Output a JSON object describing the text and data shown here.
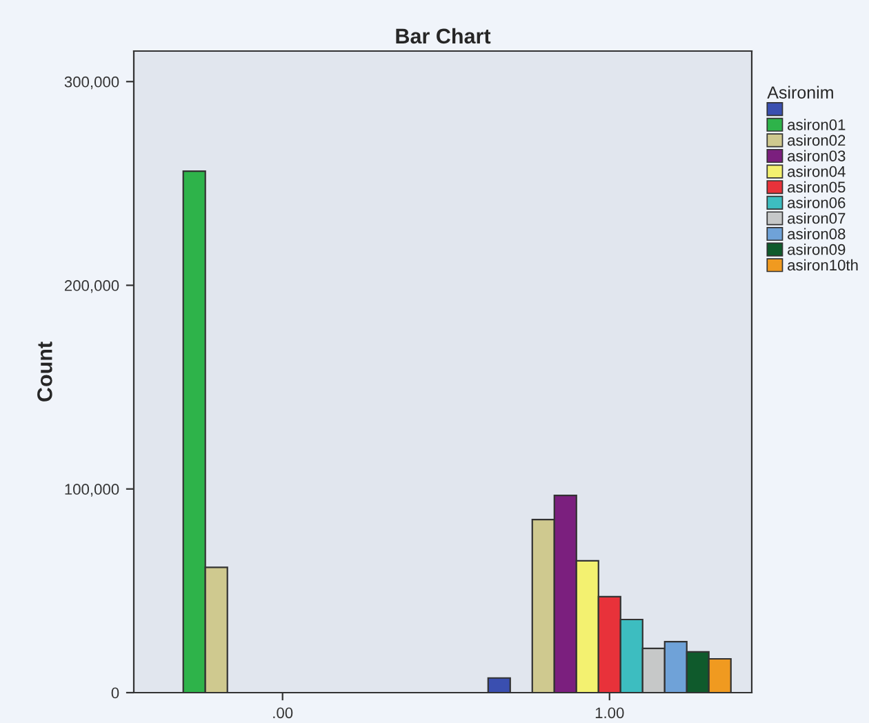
{
  "chart_data": {
    "type": "bar",
    "title": "Bar Chart",
    "ylabel": "Count",
    "legend_title": "Asironim",
    "legend": "right",
    "grid": false,
    "categories": [
      ".00",
      "1.00"
    ],
    "ylim": [
      0,
      315000
    ],
    "yticks": [
      {
        "value": 0,
        "label": "0"
      },
      {
        "value": 100000,
        "label": "100,000"
      },
      {
        "value": 200000,
        "label": "200,000"
      },
      {
        "value": 300000,
        "label": "300,000"
      }
    ],
    "series": [
      {
        "color": "#3a4fb0",
        "values": [
          null,
          7200
        ]
      },
      {
        "name": "asiron01",
        "color": "#2eb34a",
        "values": [
          256000,
          null
        ]
      },
      {
        "name": "asiron02",
        "color": "#cfc98f",
        "values": [
          61500,
          85000
        ]
      },
      {
        "name": "asiron03",
        "color": "#7b1f7e",
        "values": [
          null,
          96800
        ]
      },
      {
        "name": "asiron04",
        "color": "#f3f170",
        "values": [
          null,
          64700
        ]
      },
      {
        "name": "asiron05",
        "color": "#e8323a",
        "values": [
          null,
          47100
        ]
      },
      {
        "name": "asiron06",
        "color": "#3dbdc0",
        "values": [
          null,
          35900
        ]
      },
      {
        "name": "asiron07",
        "color": "#c6c8c8",
        "values": [
          null,
          21700
        ]
      },
      {
        "name": "asiron08",
        "color": "#6fa2d8",
        "values": [
          null,
          25000
        ]
      },
      {
        "name": "asiron09",
        "color": "#0f5a2c",
        "values": [
          null,
          20000
        ]
      },
      {
        "name": "asiron10th",
        "color": "#f09a20",
        "values": [
          null,
          16600
        ]
      }
    ]
  }
}
